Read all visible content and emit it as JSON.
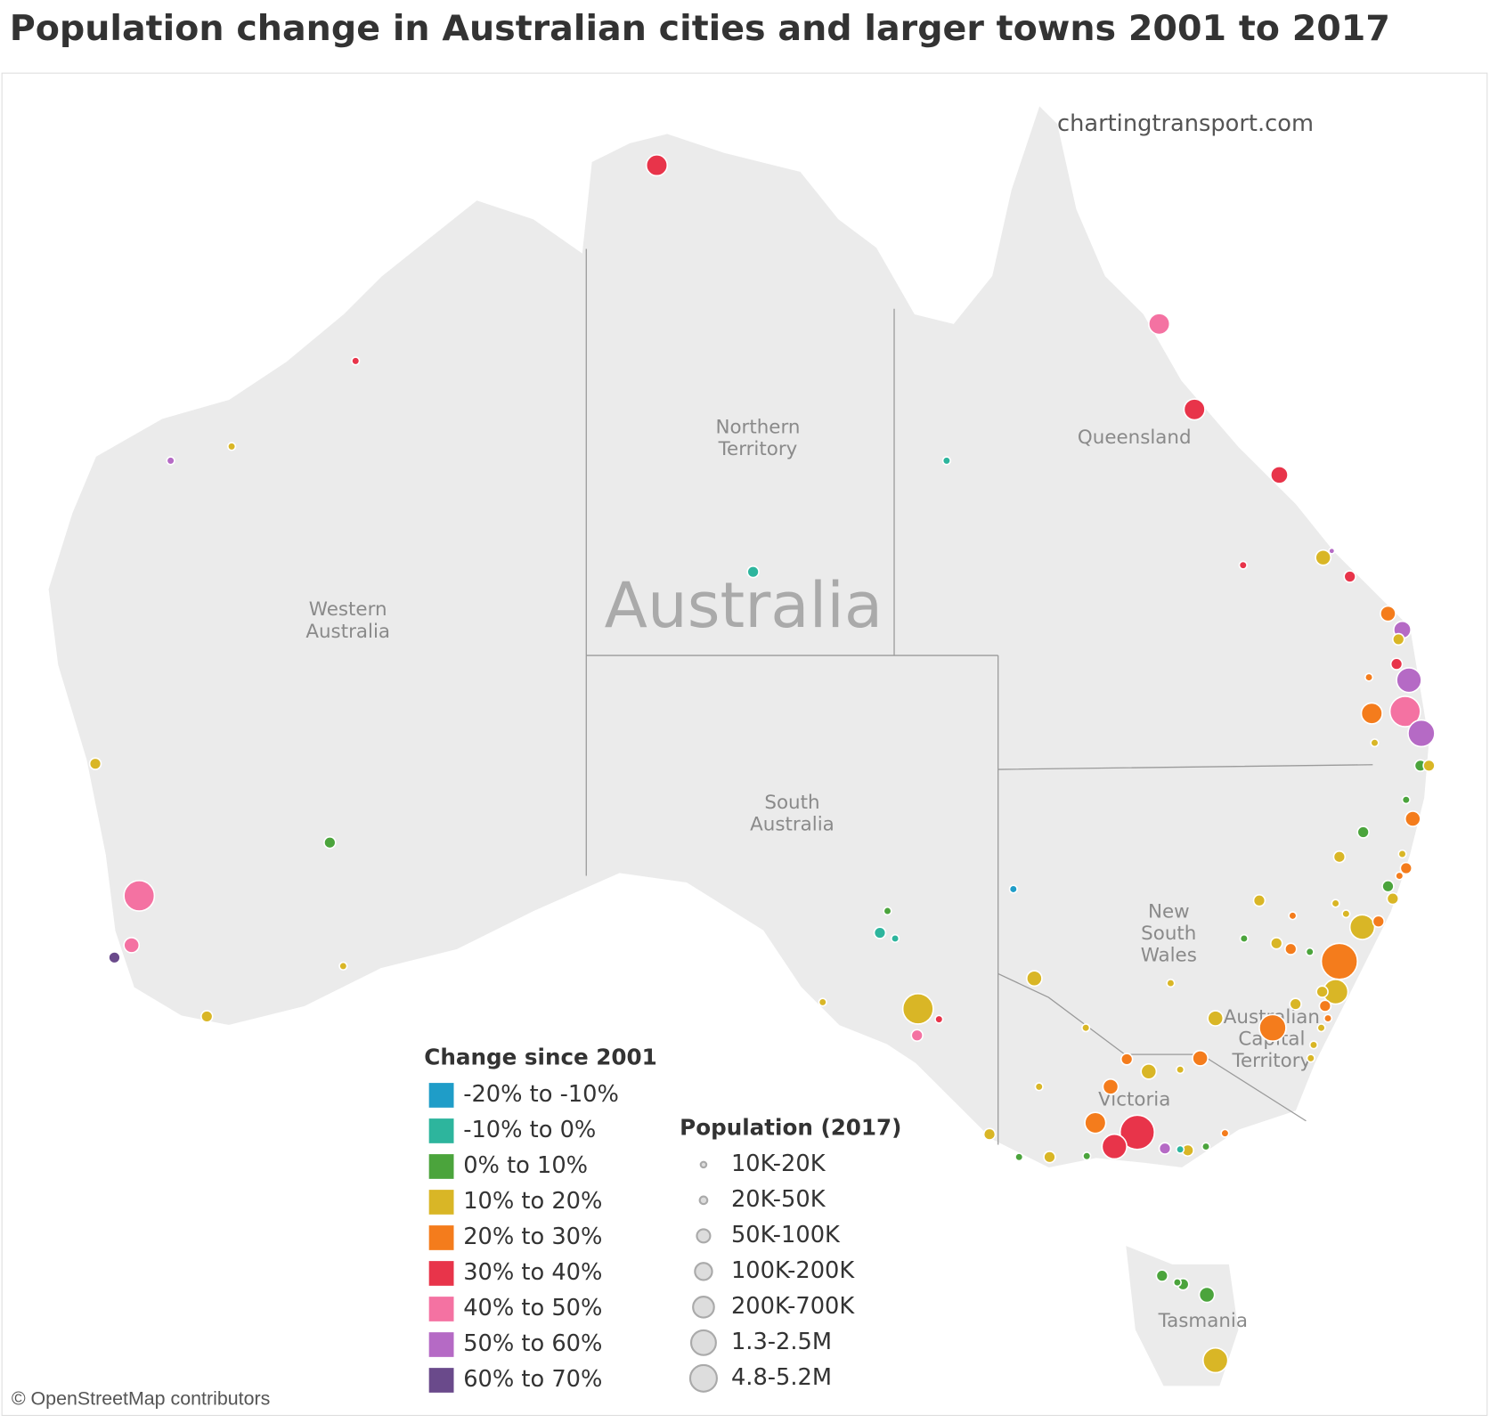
{
  "header": {
    "title": "Population change in Australian cities and larger towns 2001 to 2017"
  },
  "map": {
    "watermark": "chartingtransport.com",
    "country_label": "Australia",
    "regions": [
      {
        "lines": [
          "Northern",
          "Territory"
        ]
      },
      {
        "lines": [
          "Queensland"
        ]
      },
      {
        "lines": [
          "Western",
          "Australia"
        ]
      },
      {
        "lines": [
          "South",
          "Australia"
        ]
      },
      {
        "lines": [
          "New",
          "South",
          "Wales"
        ]
      },
      {
        "lines": [
          "Australian",
          "Capital",
          "Territory"
        ]
      },
      {
        "lines": [
          "Victoria"
        ]
      },
      {
        "lines": [
          "Tasmania"
        ]
      }
    ],
    "attribution": "© OpenStreetMap contributors"
  },
  "legend_change": {
    "title": "Change since 2001",
    "items": [
      {
        "label": "-20% to -10%",
        "color": "#1f9dc8"
      },
      {
        "label": "-10% to 0%",
        "color": "#2db59d"
      },
      {
        "label": "0% to 10%",
        "color": "#4ba43c"
      },
      {
        "label": "10% to 20%",
        "color": "#d9b626"
      },
      {
        "label": "20% to 30%",
        "color": "#f47c1c"
      },
      {
        "label": "30% to 40%",
        "color": "#e8344a"
      },
      {
        "label": "40% to 50%",
        "color": "#f472a2"
      },
      {
        "label": "50% to 60%",
        "color": "#b56ac5"
      },
      {
        "label": "60% to 70%",
        "color": "#6a4a8b"
      }
    ]
  },
  "legend_population": {
    "title": "Population (2017)",
    "items": [
      {
        "label": "10K-20K"
      },
      {
        "label": "20K-50K"
      },
      {
        "label": "50K-100K"
      },
      {
        "label": "100K-200K"
      },
      {
        "label": "200K-700K"
      },
      {
        "label": "1.3-2.5M"
      },
      {
        "label": "4.8-5.2M"
      }
    ]
  }
}
